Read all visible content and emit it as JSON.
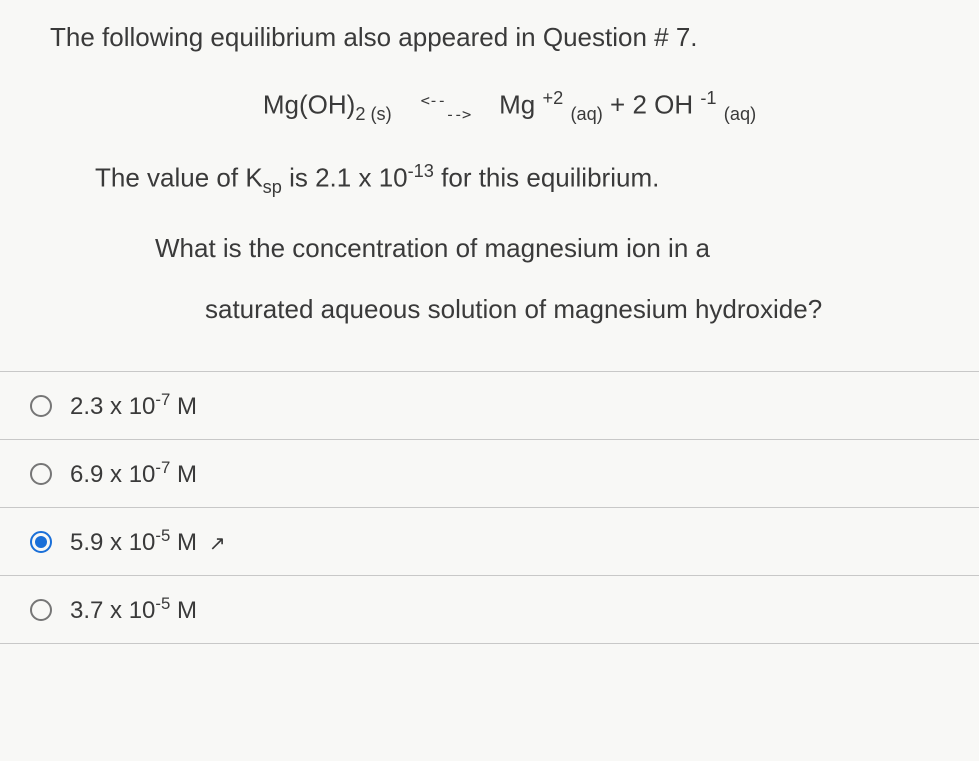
{
  "question": {
    "intro": "The following equilibrium also appeared in Question # 7.",
    "eq_lhs": "Mg(OH)",
    "eq_lhs_sub": "2 (s)",
    "eq_arrow_top": "<--",
    "eq_arrow_bot": "-->",
    "eq_rhs1": "Mg",
    "eq_rhs1_sup": "+2",
    "eq_rhs1_sub": "(aq)",
    "eq_plus": " +  2  OH",
    "eq_rhs2_sup": "-1",
    "eq_rhs2_sub": "(aq)",
    "ksp_text1": "The value of K",
    "ksp_sub": "sp",
    "ksp_text2": " is 2.1 x 10",
    "ksp_sup": "-13",
    "ksp_text3": " for this equilibrium.",
    "line3": "What is the concentration of magnesium ion in a",
    "line4": "saturated aqueous solution of magnesium hydroxide?"
  },
  "options": [
    {
      "text_a": "2.3 x 10",
      "sup": "-7",
      "text_b": " M",
      "selected": false,
      "cursor": false
    },
    {
      "text_a": "6.9 x 10",
      "sup": "-7",
      "text_b": " M",
      "selected": false,
      "cursor": false
    },
    {
      "text_a": "5.9 x 10",
      "sup": "-5",
      "text_b": " M",
      "selected": true,
      "cursor": true
    },
    {
      "text_a": "3.7 x 10",
      "sup": "-5",
      "text_b": " M",
      "selected": false,
      "cursor": false
    }
  ],
  "style": {
    "background": "#f8f8f6",
    "text_color": "#3a3a3a",
    "border_color": "#c8c8c8",
    "radio_border": "#767676",
    "radio_selected": "#1a6fd8",
    "body_fontsize": 26,
    "option_fontsize": 24
  }
}
